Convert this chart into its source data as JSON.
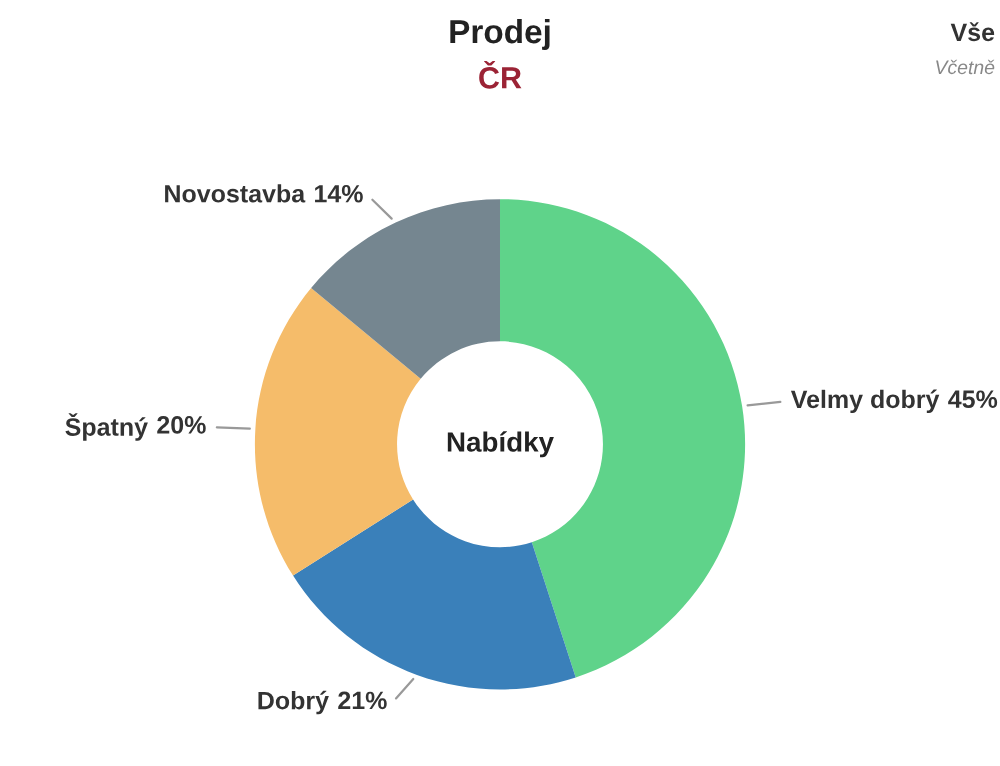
{
  "chart_data": {
    "type": "donut",
    "title": "Prodej",
    "subtitle": "ČR",
    "categories": [
      "Velmy dobrý",
      "Dobrý",
      "Špatný",
      "Novostavba"
    ],
    "values": [
      45,
      21,
      20,
      14
    ],
    "colors": [
      "#5fd38a",
      "#3a80ba",
      "#f5bc6a",
      "#758690"
    ],
    "value_labels": [
      "45%",
      "21%",
      "20%",
      "14%"
    ],
    "annotations": [
      "Nabídky",
      "Vše",
      "Včetně"
    ],
    "legend": false
  }
}
